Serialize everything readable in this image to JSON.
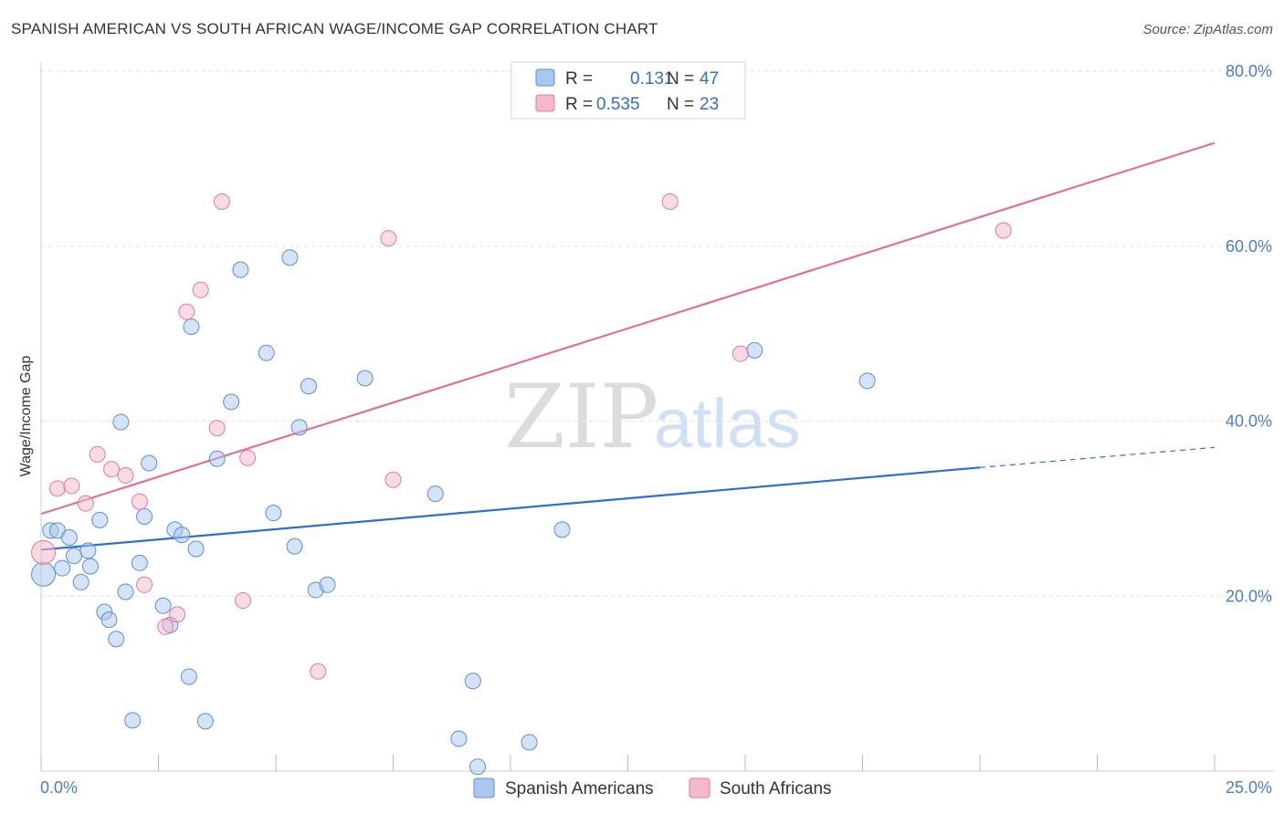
{
  "header": {
    "title": "SPANISH AMERICAN VS SOUTH AFRICAN WAGE/INCOME GAP CORRELATION CHART",
    "source": "Source: ZipAtlas.com"
  },
  "watermark": {
    "zip": "ZIP",
    "atlas": "atlas"
  },
  "legend": {
    "r_label": "R =",
    "n_label": "N =",
    "rows": [
      {
        "r": "0.131",
        "n": "47",
        "color": "#a9c8ef"
      },
      {
        "r": "0.535",
        "n": "23",
        "color": "#f6b8cb"
      }
    ]
  },
  "chart_data": {
    "type": "scatter",
    "title": "SPANISH AMERICAN VS SOUTH AFRICAN WAGE/INCOME GAP CORRELATION CHART",
    "xlabel": "",
    "ylabel": "Wage/Income Gap",
    "xlim": [
      0,
      25
    ],
    "ylim": [
      0,
      80
    ],
    "x_tick_labels": [
      "0.0%",
      "25.0%"
    ],
    "y_ticks": [
      20,
      40,
      60,
      80
    ],
    "y_tick_labels": [
      "20.0%",
      "40.0%",
      "60.0%",
      "80.0%"
    ],
    "grid": true,
    "legend_position": "top-center",
    "series": [
      {
        "name": "Spanish Americans",
        "color": "#a9c8ef",
        "stroke": "#5b8fd6",
        "line_color": "#2f6fd0",
        "trend": {
          "x0": 0,
          "y0": 25.3,
          "x1": 20,
          "y1": 34.7,
          "dash_to_x": 25,
          "dash_to_y": 37.0
        },
        "points": [
          [
            0.05,
            22.5
          ],
          [
            0.2,
            27.5
          ],
          [
            0.35,
            27.5
          ],
          [
            0.45,
            23.2
          ],
          [
            0.6,
            26.7
          ],
          [
            0.7,
            24.6
          ],
          [
            0.85,
            21.6
          ],
          [
            1.0,
            25.2
          ],
          [
            1.05,
            23.4
          ],
          [
            1.25,
            28.7
          ],
          [
            1.35,
            18.2
          ],
          [
            1.45,
            17.3
          ],
          [
            1.6,
            15.1
          ],
          [
            1.7,
            39.9
          ],
          [
            1.8,
            20.5
          ],
          [
            1.95,
            5.8
          ],
          [
            2.1,
            23.8
          ],
          [
            2.2,
            29.1
          ],
          [
            2.3,
            35.2
          ],
          [
            2.6,
            18.9
          ],
          [
            2.75,
            16.7
          ],
          [
            2.85,
            27.6
          ],
          [
            3.0,
            27.0
          ],
          [
            3.15,
            10.8
          ],
          [
            3.2,
            50.8
          ],
          [
            3.3,
            25.4
          ],
          [
            3.5,
            5.7
          ],
          [
            3.75,
            35.7
          ],
          [
            4.05,
            42.2
          ],
          [
            4.25,
            57.3
          ],
          [
            4.8,
            47.8
          ],
          [
            4.95,
            29.5
          ],
          [
            5.3,
            58.7
          ],
          [
            5.4,
            25.7
          ],
          [
            5.5,
            39.3
          ],
          [
            5.7,
            44.0
          ],
          [
            5.85,
            20.7
          ],
          [
            6.1,
            21.3
          ],
          [
            6.9,
            44.9
          ],
          [
            8.4,
            31.7
          ],
          [
            8.9,
            3.7
          ],
          [
            9.2,
            10.3
          ],
          [
            9.3,
            0.5
          ],
          [
            10.4,
            3.3
          ],
          [
            11.1,
            27.6
          ],
          [
            15.2,
            48.1
          ],
          [
            17.6,
            44.6
          ]
        ]
      },
      {
        "name": "South Africans",
        "color": "#f6b8cb",
        "stroke": "#e07a9c",
        "line_color": "#e0709a",
        "trend": {
          "x0": 0,
          "y0": 29.4,
          "x1": 25,
          "y1": 71.8
        },
        "points": [
          [
            0.05,
            25.0
          ],
          [
            0.35,
            32.3
          ],
          [
            0.65,
            32.6
          ],
          [
            0.95,
            30.6
          ],
          [
            1.2,
            36.2
          ],
          [
            1.5,
            34.5
          ],
          [
            1.8,
            33.8
          ],
          [
            2.1,
            30.8
          ],
          [
            2.2,
            21.3
          ],
          [
            2.65,
            16.5
          ],
          [
            2.9,
            17.9
          ],
          [
            3.1,
            52.5
          ],
          [
            3.4,
            55.0
          ],
          [
            3.75,
            39.2
          ],
          [
            3.85,
            65.1
          ],
          [
            4.3,
            19.5
          ],
          [
            4.4,
            35.8
          ],
          [
            5.9,
            11.4
          ],
          [
            7.4,
            60.9
          ],
          [
            7.5,
            33.3
          ],
          [
            13.4,
            65.1
          ],
          [
            14.9,
            47.7
          ],
          [
            20.5,
            61.8
          ]
        ]
      }
    ]
  }
}
